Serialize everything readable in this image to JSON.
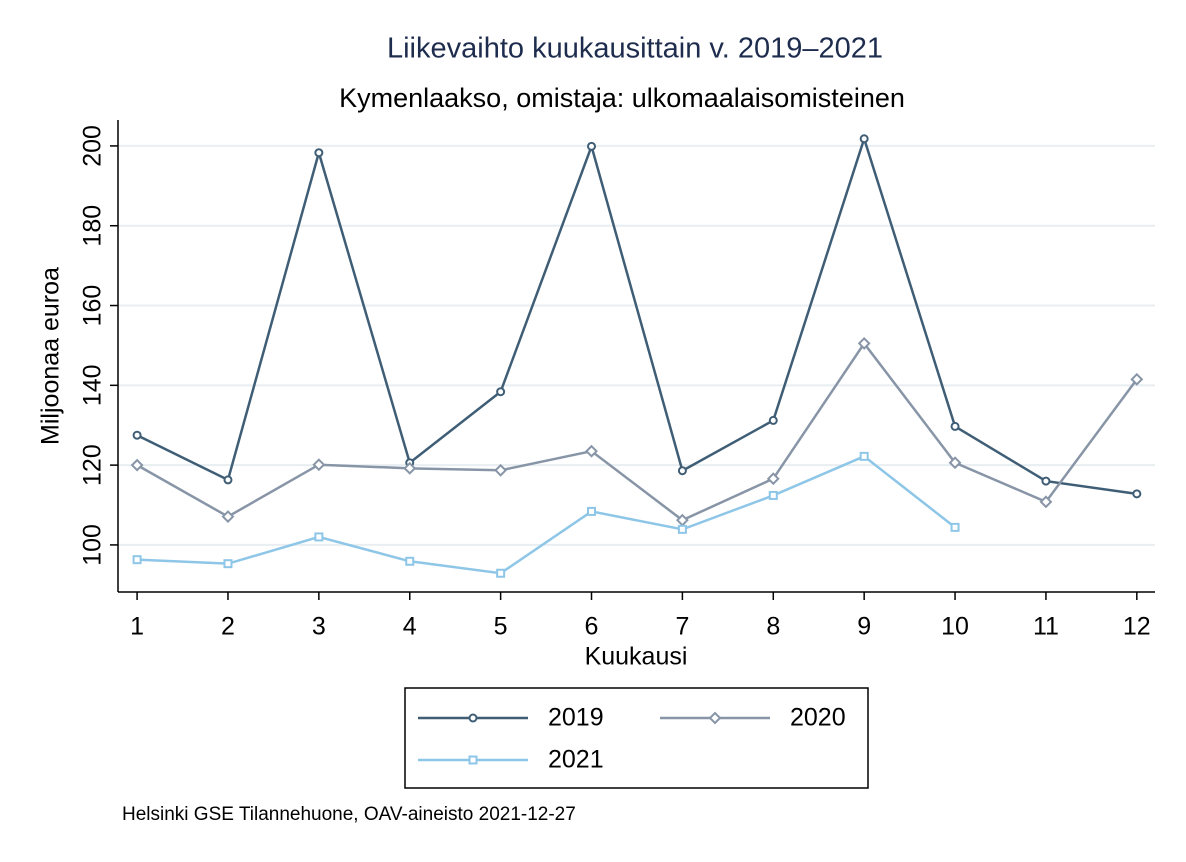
{
  "chart_data": {
    "type": "line",
    "title": "Liikevaihto kuukausittain v. 2019–2021",
    "subtitle": "Kymenlaakso, omistaja: ulkomaalaisomisteinen",
    "x_label": "Kuukausi",
    "y_label": "Miljoonaa euroa",
    "note": "Helsinki GSE Tilannehuone, OAV-aineisto 2021-12-27",
    "x": [
      1,
      2,
      3,
      4,
      5,
      6,
      7,
      8,
      9,
      10,
      11,
      12
    ],
    "xlim": [
      0.79,
      12.2
    ],
    "xticks": [
      1,
      2,
      3,
      4,
      5,
      6,
      7,
      8,
      9,
      10,
      11,
      12
    ],
    "ylim": [
      88.2,
      206.5
    ],
    "yticks": [
      100,
      120,
      140,
      160,
      180,
      200
    ],
    "grid": true,
    "legend": "bottom",
    "series": [
      {
        "name": "2019",
        "color": "#3f5e76",
        "marker": "circle",
        "values": [
          127.5,
          116.3,
          198.3,
          120.6,
          138.4,
          199.9,
          118.6,
          131.2,
          201.8,
          129.7,
          116.0,
          112.8
        ]
      },
      {
        "name": "2020",
        "color": "#8795a7",
        "marker": "diamond",
        "values": [
          120.0,
          107.1,
          120.1,
          119.2,
          118.7,
          123.5,
          106.2,
          116.6,
          150.5,
          120.6,
          110.8,
          141.5
        ]
      },
      {
        "name": "2021",
        "color": "#8ec6e8",
        "marker": "square",
        "values": [
          96.3,
          95.3,
          102.0,
          95.9,
          92.9,
          108.4,
          103.9,
          112.4,
          122.2,
          104.4,
          null,
          null
        ]
      }
    ]
  }
}
